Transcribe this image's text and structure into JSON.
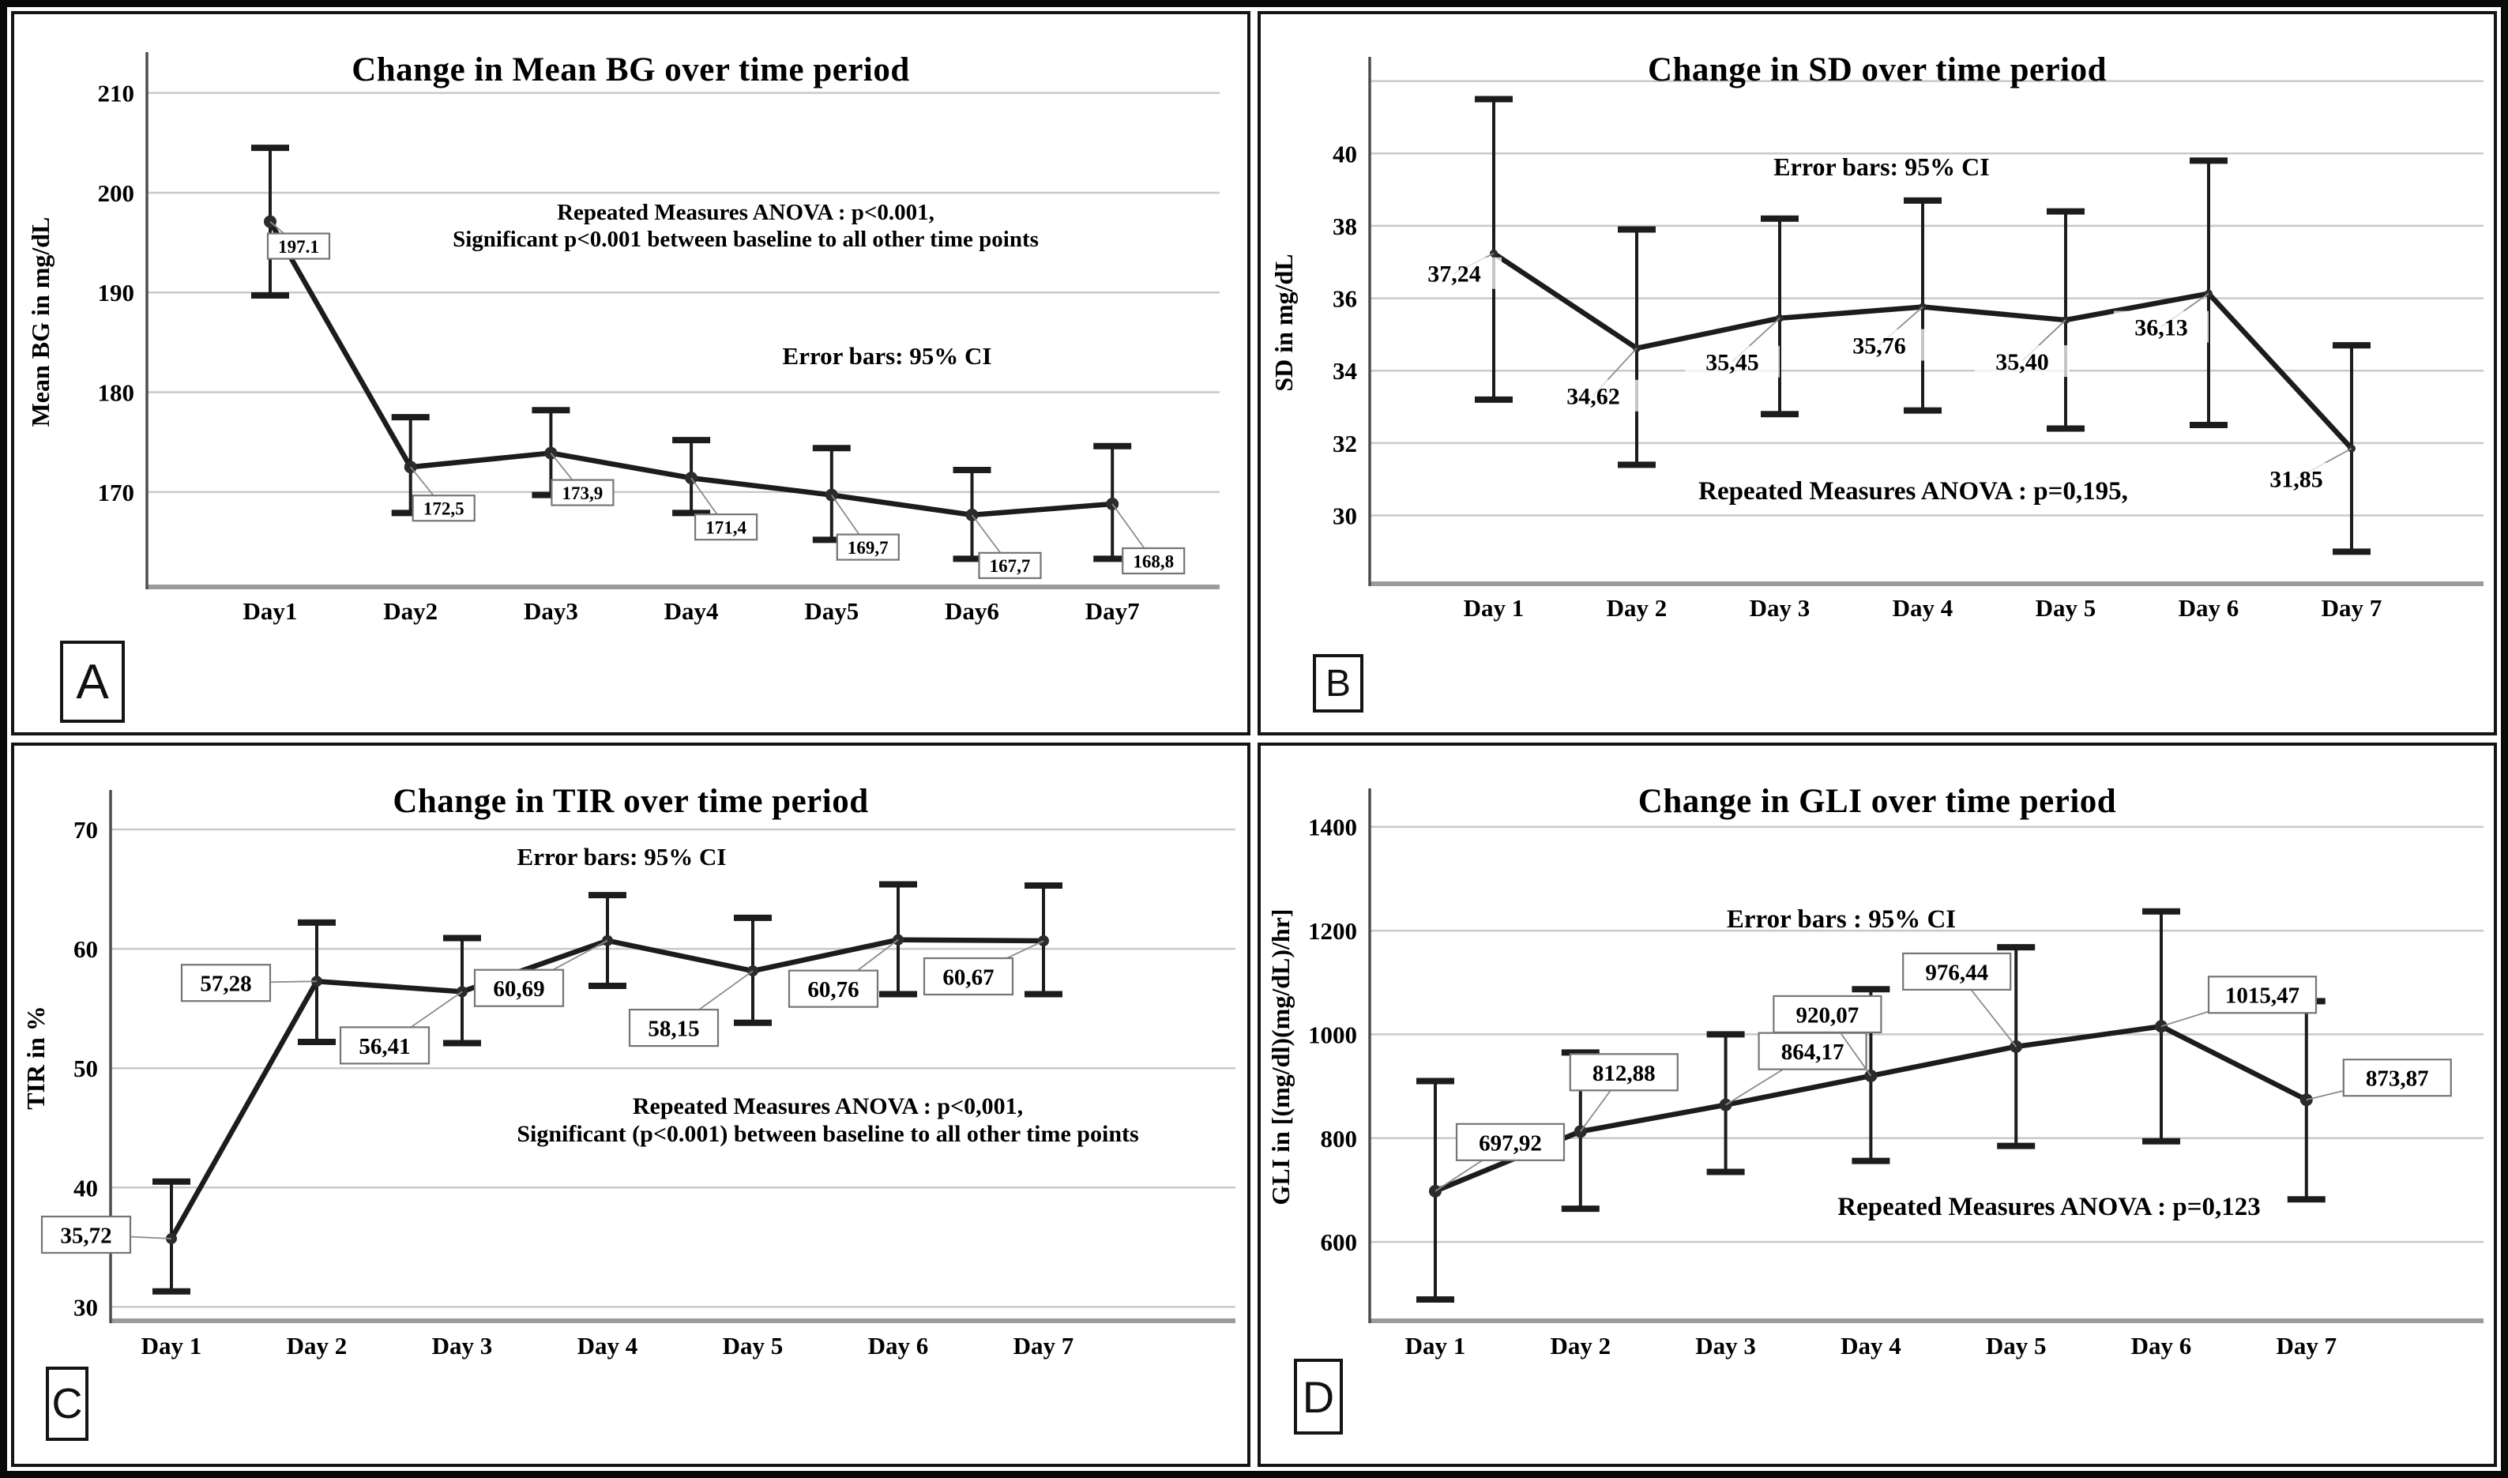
{
  "figure_title": "Four-panel SPSS line charts of CGM metrics over 7 days",
  "colors": {
    "background": "#ffffff",
    "panel_border": "#141414",
    "grid": "#c9c9c9",
    "axis_x": "#9b9b9b",
    "axis_y": "#4d4d4d",
    "line": "#1c1c1c",
    "marker": "#2b2b2b",
    "error_bar": "#1c1c1c",
    "label_box_border": "#757575",
    "label_box_fill": "#ffffff",
    "leader": "#8c8c8c",
    "text": "#000000"
  },
  "chart_data": [
    {
      "panel": "A",
      "type": "line",
      "title": "Change in Mean BG over time period",
      "ylabel": "Mean BG in mg/dL",
      "xlabel": "",
      "categories": [
        "Day1",
        "Day2",
        "Day3",
        "Day4",
        "Day5",
        "Day6",
        "Day7"
      ],
      "values": [
        197.1,
        172.5,
        173.9,
        171.4,
        169.7,
        167.7,
        168.8
      ],
      "value_labels": [
        "197.1",
        "172,5",
        "173,9",
        "171,4",
        "169,7",
        "167,7",
        "168,8"
      ],
      "ci_low": [
        189.7,
        167.9,
        169.7,
        167.9,
        165.2,
        163.3,
        163.3
      ],
      "ci_high": [
        204.5,
        177.5,
        178.2,
        175.2,
        174.4,
        172.2,
        174.6
      ],
      "yticks": [
        210,
        200,
        190,
        180,
        170
      ],
      "ylim": [
        160.8,
        213.3
      ],
      "grid": true,
      "legend": false,
      "notes": {
        "anova_lines": [
          "Repeated Measures ANOVA : p<0.001,",
          "Significant p<0.001 between baseline to all other time points"
        ],
        "error_bars": "Error bars: 95% CI"
      }
    },
    {
      "panel": "B",
      "type": "line",
      "title": "Change in SD over time period",
      "ylabel": "SD in mg/dL",
      "xlabel": "",
      "categories": [
        "Day 1",
        "Day 2",
        "Day 3",
        "Day 4",
        "Day 5",
        "Day 6",
        "Day 7"
      ],
      "values": [
        37.24,
        34.62,
        35.45,
        35.76,
        35.4,
        36.13,
        31.85
      ],
      "value_labels": [
        "37,24",
        "34,62",
        "35,45",
        "35,76",
        "35,40",
        "36,13",
        "31,85"
      ],
      "ci_low": [
        33.2,
        31.4,
        32.8,
        32.9,
        32.4,
        32.5,
        29.0
      ],
      "ci_high": [
        41.5,
        37.9,
        38.2,
        38.7,
        38.4,
        39.8,
        34.7
      ],
      "yticks": [
        40,
        38,
        36,
        34,
        32,
        30
      ],
      "gridlines": [
        42,
        40,
        38,
        36,
        34,
        32,
        30
      ],
      "ylim": [
        28.2,
        42.45
      ],
      "grid": true,
      "legend": false,
      "notes": {
        "anova_lines": [
          "Repeated Measures ANOVA : p=0,195,"
        ],
        "error_bars": "Error bars: 95% CI"
      }
    },
    {
      "panel": "C",
      "type": "line",
      "title": "Change in TIR over time period",
      "ylabel": "TIR in %",
      "xlabel": "",
      "categories": [
        "Day 1",
        "Day 2",
        "Day 3",
        "Day 4",
        "Day 5",
        "Day 6",
        "Day 7"
      ],
      "values": [
        35.72,
        57.28,
        56.41,
        60.69,
        58.15,
        60.76,
        60.67
      ],
      "value_labels": [
        "35,72",
        "57,28",
        "56,41",
        "60,69",
        "58,15",
        "60,76",
        "60,67"
      ],
      "ci_low": [
        31.3,
        52.2,
        52.1,
        56.9,
        53.8,
        56.2,
        56.2
      ],
      "ci_high": [
        40.5,
        62.2,
        60.9,
        64.5,
        62.6,
        65.4,
        65.3
      ],
      "yticks": [
        70,
        60,
        50,
        40,
        30
      ],
      "ylim": [
        29.1,
        72.65
      ],
      "grid": true,
      "legend": false,
      "notes": {
        "anova_lines": [
          "Repeated Measures ANOVA : p<0,001,",
          "Significant (p<0.001) between baseline to all other time points"
        ],
        "error_bars": "Error bars: 95% CI"
      }
    },
    {
      "panel": "D",
      "type": "line",
      "title": "Change in GLI over time period",
      "ylabel": "GLI in [(mg/dl)(mg/dL)/hr]",
      "xlabel": "",
      "categories": [
        "Day 1",
        "Day 2",
        "Day 3",
        "Day 4",
        "Day 5",
        "Day 6",
        "Day 7"
      ],
      "values": [
        697.92,
        812.88,
        864.17,
        920.07,
        976.44,
        1015.47,
        873.87
      ],
      "value_labels": [
        "697,92",
        "812,88",
        "864,17",
        "920,07",
        "976,44",
        "1015,47",
        "873,87"
      ],
      "ci_low": [
        489,
        664,
        735,
        756,
        785,
        794,
        682
      ],
      "ci_high": [
        910,
        965,
        1000,
        1087,
        1168,
        1237,
        1064
      ],
      "yticks": [
        1400,
        1200,
        1000,
        800,
        600
      ],
      "ylim": [
        454,
        1459
      ],
      "grid": true,
      "legend": false,
      "notes": {
        "anova_lines": [
          "Repeated Measures ANOVA : p=0,123"
        ],
        "error_bars": "Error bars : 95% CI"
      }
    }
  ]
}
